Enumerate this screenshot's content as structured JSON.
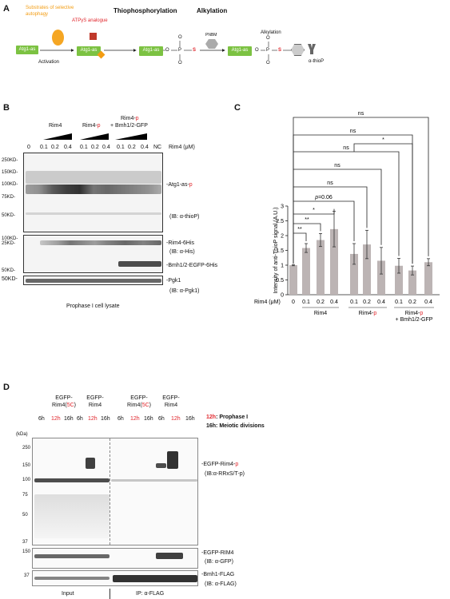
{
  "panel_a": {
    "label": "A",
    "substrates": "Substrates of selective autophagy",
    "atp_analogue": "ATPγS analogue",
    "step_thio": "Thiophosphorylation",
    "step_alk": "Alkylation",
    "atg1_label": "Atg1-as",
    "activation": "Activation",
    "o": "O",
    "p": "P",
    "s_minus": "S",
    "o_minus": "O",
    "pnbm": "PNBM",
    "alkylation2": "Alkylation",
    "s_red": "S",
    "antibody": "α-thioP"
  },
  "panel_b": {
    "label": "B",
    "groups": [
      "Rim4",
      "Rim4-p",
      "Rim4-p + Bmh1/2-GFP"
    ],
    "group1": "Rim4",
    "group2_a": "Rim4-",
    "group2_b": "p",
    "group3_a": "Rim4-",
    "group3_b": "p",
    "group3_c": "+ Bmh1/2-GFP",
    "lanes": [
      "0",
      "0.1",
      "0.2",
      "0.4",
      "0.1",
      "0.2",
      "0.4",
      "0.1",
      "0.2",
      "0.4",
      "NC"
    ],
    "conc_label": "Rim4 (μM)",
    "markers_top": [
      "250KD-",
      "150KD-",
      "100KD-",
      "75KD-",
      "50KD-",
      "25KD-"
    ],
    "markers_mid": [
      "100KD-",
      "50KD-"
    ],
    "marker_bot": "50KD-",
    "atg1_a": "-Atg1-as-",
    "atg1_b": "p",
    "ib_thio": "(IB: α-thioP)",
    "rim4his": "-Rim4-6His",
    "ib_his": "(IB: α-His)",
    "bmh": "-Bmh1/2-EGFP-6His",
    "pgk": "-Pgk1",
    "ib_pgk": "(IB: α-Pgk1)",
    "caption": "Prophase I cell lysate"
  },
  "panel_c": {
    "label": "C",
    "ylabel": "Intensity of anti-ThioP signal (A.U.)",
    "xlabel": "Rim4 (μM)",
    "ticks_x": [
      "0",
      "0.1",
      "0.2",
      "0.4",
      "0.1",
      "0.2",
      "0.4",
      "0.1",
      "0.2",
      "0.4"
    ],
    "group1": "Rim4",
    "group2_a": "Rim4-",
    "group2_b": "p",
    "group3_a": "Rim4-",
    "group3_b": "p",
    "group3_c": "+ Bmh1/2-GFP",
    "sig": [
      "ns",
      "ns",
      "ns",
      "*",
      "ns",
      "ns",
      "p=0.06",
      "*",
      "**",
      "**"
    ],
    "sig_p006_a": "p",
    "sig_p006_b": "=0.06"
  },
  "chart_data": {
    "type": "bar",
    "categories": [
      "0",
      "0.1",
      "0.2",
      "0.4",
      "0.1",
      "0.2",
      "0.4",
      "0.1",
      "0.2",
      "0.4"
    ],
    "values": [
      1.0,
      1.58,
      1.85,
      2.22,
      1.38,
      1.7,
      1.15,
      0.98,
      0.82,
      1.1
    ],
    "errors": [
      0.02,
      0.15,
      0.22,
      0.6,
      0.35,
      0.48,
      0.45,
      0.25,
      0.15,
      0.12
    ],
    "yticks": [
      "0",
      "0.5",
      "1",
      "1.5",
      "2",
      "2.5",
      "3"
    ],
    "ylim": [
      0,
      3
    ],
    "color": "#bcb4b4",
    "title": "",
    "xlabel": "Rim4 (μM)",
    "ylabel": "Intensity of anti-ThioP signal (A.U.)"
  },
  "panel_d": {
    "label": "D",
    "col_headers": [
      "EGFP-Rim4(5C)",
      "EGFP-Rim4",
      "EGFP-Rim4(5C)",
      "EGFP-Rim4"
    ],
    "h_egfp": "EGFP-",
    "h_rim4_a": "Rim4(",
    "h_5c": "5C",
    "h_close": ")",
    "h_rim4": "Rim4",
    "times": [
      "6h",
      "12h",
      "16h",
      "6h",
      "12h",
      "16h",
      "6h",
      "12h",
      "16h",
      "6h",
      "12h",
      "16h"
    ],
    "legend_12h": "12h",
    "legend_12h_text": ": Prophase I",
    "legend_16h": "16h: Meiotic divisions",
    "kda": "(kDa)",
    "markers": [
      "250",
      "150",
      "100",
      "75",
      "50",
      "37"
    ],
    "marker_mid": "150",
    "marker_bot": "37",
    "egfp_rim4p_a": "-EGFP-Rim4-",
    "egfp_rim4p_b": "p",
    "ib_rrxs": "(IB:α-RRxS/T-p)",
    "egfp_rim4": "-EGFP-RIM4",
    "ib_gfp": "(IB: α-GFP)",
    "bmh1": "-Bmh1-FLAG",
    "ib_flag": "(IB: α-FLAG)",
    "input": "Input",
    "ip": "IP: α-FLAG"
  }
}
